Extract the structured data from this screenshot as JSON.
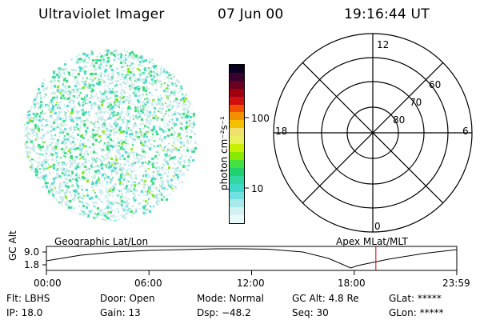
{
  "header": {
    "title": "Ultraviolet Imager",
    "date": "07 Jun 00",
    "time": "19:16:44 UT"
  },
  "colorbar": {
    "unit_label": "photon cm⁻²s⁻¹",
    "ticks": [
      "100",
      "10"
    ],
    "colors": [
      "#0a0020",
      "#3a0030",
      "#6a0020",
      "#a00010",
      "#d01010",
      "#f05000",
      "#f39000",
      "#f5c000",
      "#f0e070",
      "#e8f060",
      "#c8f000",
      "#88e800",
      "#44e040",
      "#20d070",
      "#30d8a0",
      "#40d8c8",
      "#70e0e0",
      "#a8eaea",
      "#d4f2f2",
      "#eafafa"
    ]
  },
  "polar": {
    "labels": {
      "top": "12",
      "left": "18",
      "right": "6",
      "bottom": "0"
    },
    "ring_labels": [
      "60",
      "70",
      "80"
    ]
  },
  "axes": {
    "left_label": "Geographic Lat/Lon",
    "right_label": "Apex MLat/MLT"
  },
  "gc_plot": {
    "ylabel": "GC Alt",
    "yticks": [
      "9.0",
      "1.8"
    ],
    "xticks": [
      "00:00",
      "06:00",
      "12:00",
      "18:00",
      "23:59"
    ],
    "current_time_marker": "19:16"
  },
  "info": {
    "flt": "Flt: LBHS",
    "ip": "IP: 18.0",
    "door": "Door: Open",
    "gain": "Gain: 13",
    "mode": "Mode: Normal",
    "dsp": "Dsp:  −48.2",
    "gcalt": "GC Alt: 4.8 Re",
    "seq": "Seq: 30",
    "glat": "GLat: *****",
    "glon": "GLon: *****"
  },
  "image_colors": {
    "pale": "#c8e8ea",
    "cyan": "#40d8c8",
    "green": "#30d870",
    "lime": "#88e800"
  },
  "accent": {
    "marker_line": "#cc0000"
  }
}
